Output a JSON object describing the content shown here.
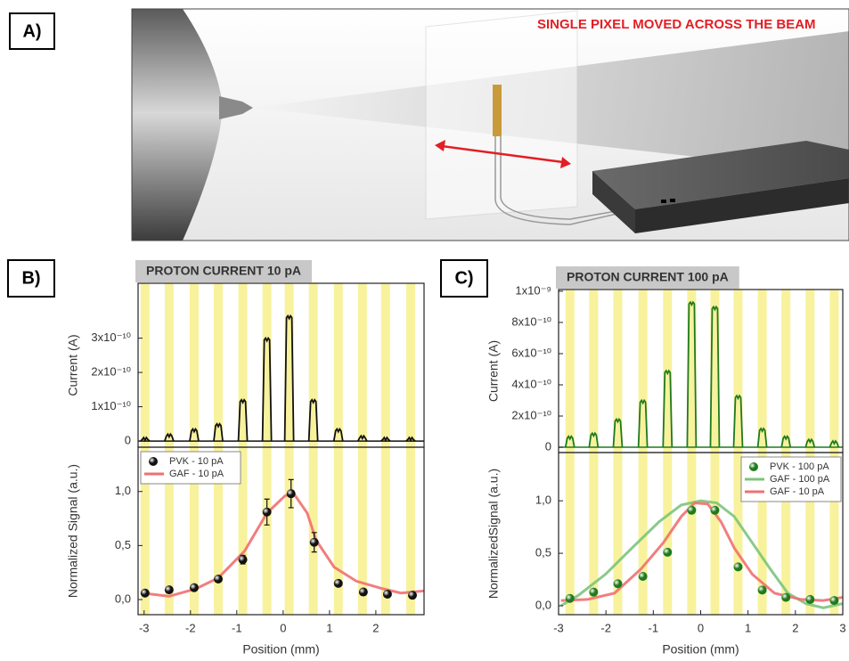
{
  "panels": {
    "a": "A)",
    "b": "B)",
    "c": "C)"
  },
  "illustration": {
    "caption": "SINGLE PIXEL MOVED ACROSS THE BEAM"
  },
  "chart_data": [
    {
      "type": "pulse",
      "title": "PROTON CURRENT 10 pA",
      "y_label": "Current (A)",
      "color": "#111111",
      "x": [
        -2.98,
        -2.46,
        -1.92,
        -1.4,
        -0.87,
        -0.35,
        0.13,
        0.65,
        1.19,
        1.71,
        2.21,
        2.75
      ],
      "values": [
        1e-11,
        2e-11,
        3.5e-11,
        5e-11,
        1.2e-10,
        3e-10,
        3.65e-10,
        1.2e-10,
        3.5e-11,
        1.5e-11,
        1e-11,
        1e-11
      ],
      "xlim": [
        -3.13,
        3.04
      ],
      "ylim": [
        -1.8e-11,
        4.6e-10
      ],
      "yticks": [
        0,
        {
          "value": 1e-10,
          "label": "1x10⁻¹⁰"
        },
        {
          "value": 2e-10,
          "label": "2x10⁻¹⁰"
        },
        {
          "value": 3e-10,
          "label": "3x10⁻¹⁰"
        }
      ]
    },
    {
      "type": "mixed",
      "x_label": "Position (mm)",
      "y_label": "Normalized Signal (a.u.)",
      "legend": "upper left",
      "xlim": [
        -3.13,
        3.04
      ],
      "ylim": [
        -0.14,
        1.41
      ],
      "xticks": [
        -3,
        -2,
        -1,
        0,
        1,
        2
      ],
      "yticks": [
        {
          "value": 0,
          "label": "0,0"
        },
        {
          "value": 0.5,
          "label": "0,5"
        },
        {
          "value": 1,
          "label": "1,0"
        }
      ],
      "series": [
        {
          "name": "PVK - 10 pA",
          "kind": "scatter",
          "color": "#111111",
          "x": [
            -2.98,
            -2.46,
            -1.92,
            -1.4,
            -0.87,
            -0.35,
            0.17,
            0.67,
            1.19,
            1.73,
            2.25,
            2.79
          ],
          "values": [
            0.06,
            0.09,
            0.11,
            0.19,
            0.37,
            0.81,
            0.98,
            0.53,
            0.15,
            0.07,
            0.05,
            0.04
          ],
          "errors": [
            null,
            null,
            null,
            null,
            0.04,
            0.12,
            0.13,
            0.09,
            null,
            null,
            null,
            null
          ]
        },
        {
          "name": "GAF - 10 pA",
          "kind": "line",
          "color": "#f07070",
          "x": [
            -3.04,
            -2.46,
            -1.88,
            -1.4,
            -0.83,
            -0.35,
            0.04,
            0.23,
            0.52,
            0.71,
            1.1,
            1.58,
            2.15,
            2.54,
            3.04
          ],
          "values": [
            0.06,
            0.03,
            0.1,
            0.2,
            0.45,
            0.8,
            0.96,
            0.98,
            0.8,
            0.55,
            0.3,
            0.17,
            0.1,
            0.06,
            0.08
          ]
        }
      ]
    },
    {
      "type": "pulse",
      "title": "PROTON CURRENT 100 pA",
      "y_label": "Current (A)",
      "color": "#1f7a1f",
      "x": [
        -2.76,
        -2.26,
        -1.75,
        -1.22,
        -0.7,
        -0.19,
        0.3,
        0.79,
        1.3,
        1.8,
        2.31,
        2.82
      ],
      "values": [
        7e-11,
        9e-11,
        1.8e-10,
        3e-10,
        4.9e-10,
        9.3e-10,
        9e-10,
        3.3e-10,
        1.2e-10,
        7e-11,
        5e-11,
        4e-11
      ],
      "xlim": [
        -3,
        3
      ],
      "ylim": [
        -3.4e-11,
        1.011e-09
      ],
      "yticks": [
        0,
        {
          "value": 2e-10,
          "label": "2x10⁻¹⁰"
        },
        {
          "value": 4e-10,
          "label": "4x10⁻¹⁰"
        },
        {
          "value": 6e-10,
          "label": "6x10⁻¹⁰"
        },
        {
          "value": 8e-10,
          "label": "8x10⁻¹⁰"
        },
        {
          "value": 1e-09,
          "label": "1x10⁻⁹"
        }
      ]
    },
    {
      "type": "mixed",
      "x_label": "Position (mm)",
      "y_label": "NormalizedSignal (a.u.)",
      "legend": "upper right",
      "xlim": [
        -3,
        3
      ],
      "ylim": [
        -0.085,
        1.46
      ],
      "xticks": [
        -3,
        -2,
        -1,
        0,
        1,
        2,
        3
      ],
      "yticks": [
        {
          "value": 0,
          "label": "0,0"
        },
        {
          "value": 0.5,
          "label": "0,5"
        },
        {
          "value": 1,
          "label": "1,0"
        }
      ],
      "series": [
        {
          "name": "PVK - 100 pA",
          "kind": "scatter",
          "color": "#1f7a1f",
          "x": [
            -2.76,
            -2.26,
            -1.75,
            -1.22,
            -0.7,
            -0.19,
            0.3,
            0.79,
            1.3,
            1.8,
            2.31,
            2.82
          ],
          "values": [
            0.07,
            0.13,
            0.21,
            0.28,
            0.51,
            0.91,
            0.91,
            0.37,
            0.15,
            0.08,
            0.06,
            0.05
          ]
        },
        {
          "name": "GAF - 100 pA",
          "kind": "line",
          "color": "#7cc47c",
          "x": [
            -2.95,
            -2.58,
            -2.01,
            -1.45,
            -0.88,
            -0.41,
            0,
            0.34,
            0.71,
            1.09,
            1.47,
            1.84,
            2.22,
            2.59,
            2.99
          ],
          "values": [
            0.0,
            0.1,
            0.3,
            0.55,
            0.8,
            0.96,
            1.0,
            0.98,
            0.85,
            0.6,
            0.35,
            0.12,
            0.02,
            -0.02,
            0.02
          ]
        },
        {
          "name": "GAF - 10 pA",
          "kind": "line",
          "color": "#f07070",
          "x": [
            -2.95,
            -2.39,
            -1.82,
            -1.26,
            -0.79,
            -0.41,
            -0.13,
            0.15,
            0.43,
            0.71,
            1.09,
            1.56,
            2.12,
            2.59,
            2.99
          ],
          "values": [
            0.05,
            0.06,
            0.12,
            0.35,
            0.6,
            0.85,
            0.98,
            0.97,
            0.8,
            0.55,
            0.3,
            0.12,
            0.06,
            0.05,
            0.08
          ]
        }
      ]
    }
  ]
}
